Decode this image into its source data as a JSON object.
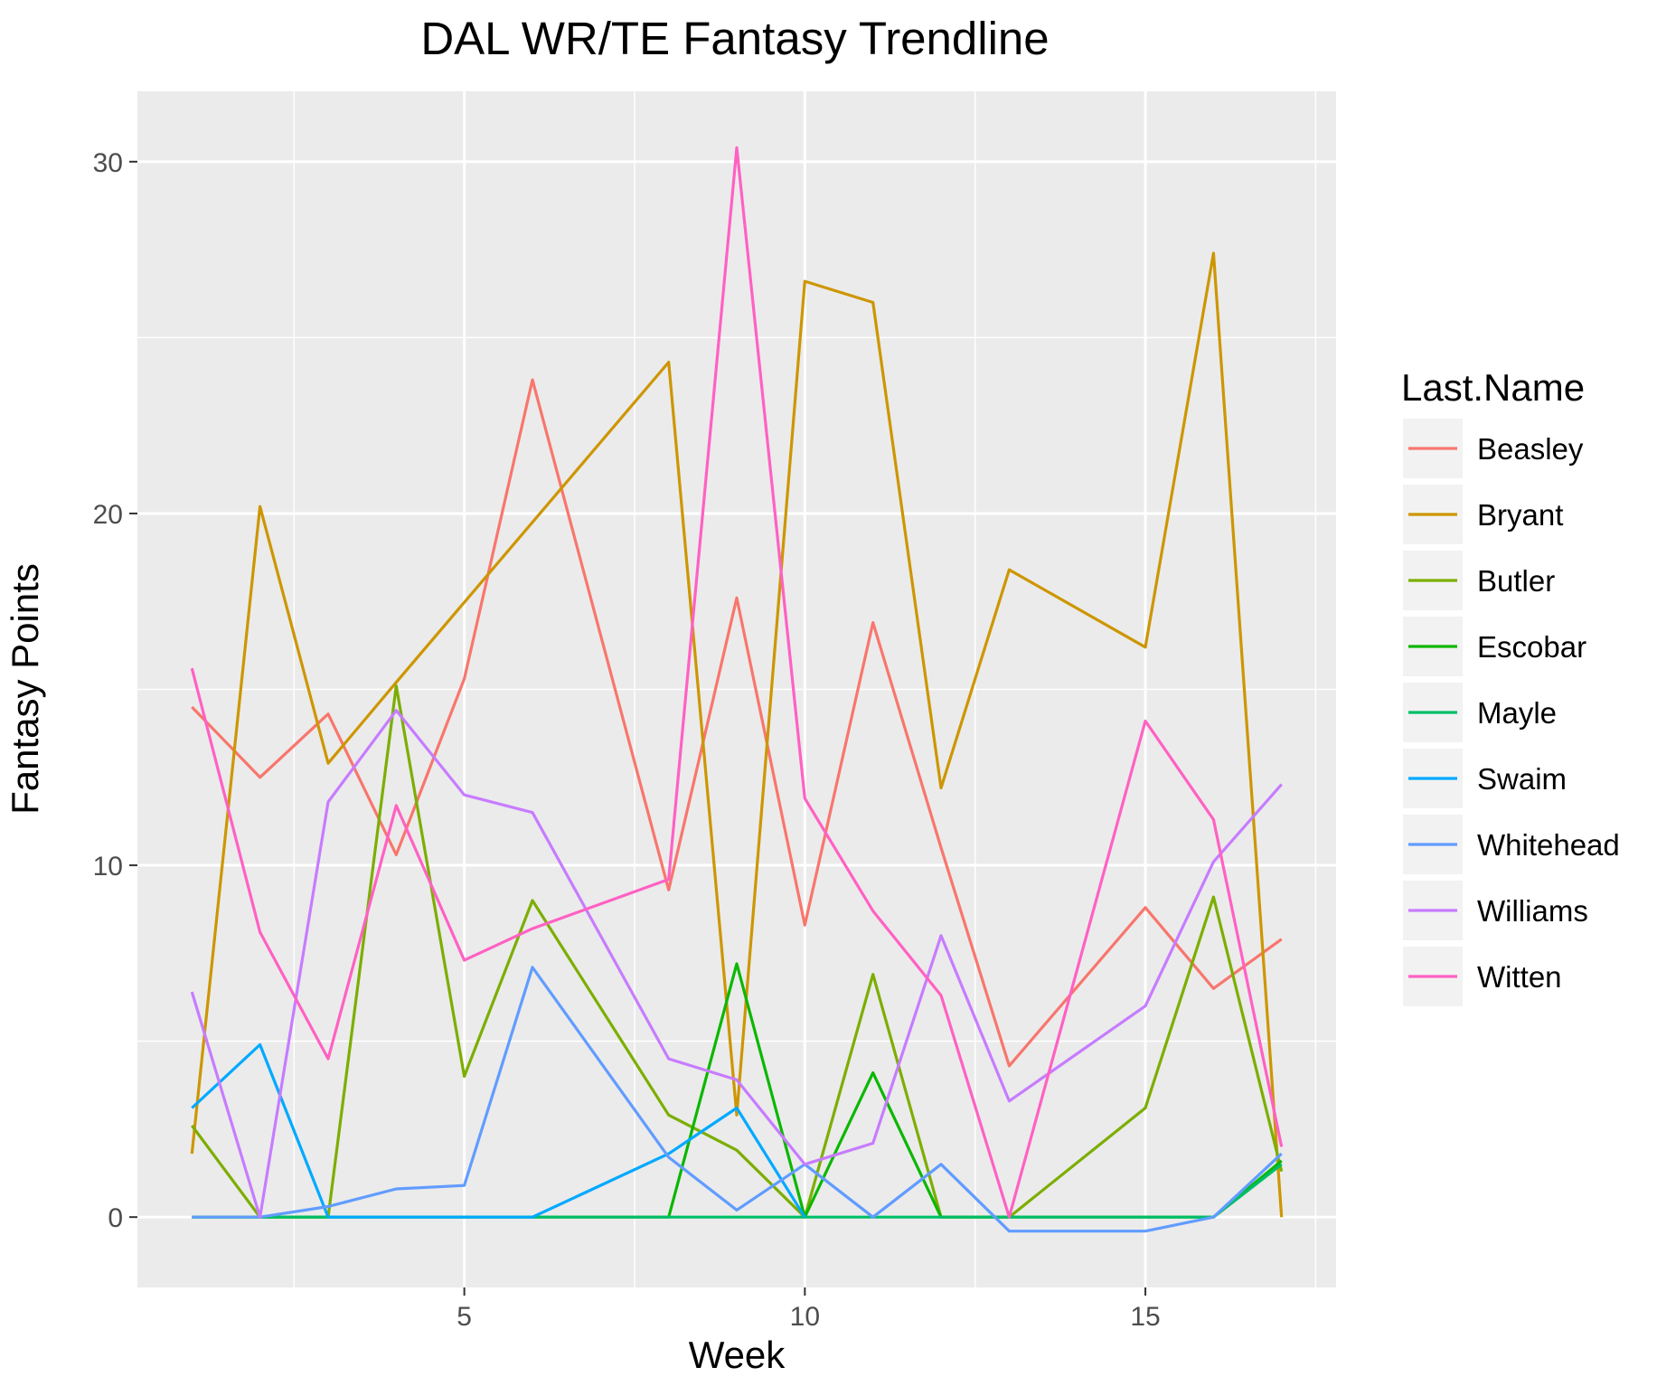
{
  "chart_data": {
    "type": "line",
    "title": "DAL WR/TE Fantasy Trendline",
    "xlabel": "Week",
    "ylabel": "Fantasy Points",
    "xlim": [
      0.2,
      17.8
    ],
    "ylim": [
      -2,
      32
    ],
    "x_ticks": [
      5,
      10,
      15
    ],
    "x_tick_labels": [
      "5",
      "10",
      "15"
    ],
    "y_ticks": [
      0,
      10,
      20,
      30
    ],
    "y_tick_labels": [
      "0",
      "10",
      "20",
      "30"
    ],
    "grid": true,
    "legend": {
      "title": "Last.Name",
      "position": "right"
    },
    "series": [
      {
        "name": "Beasley",
        "color": "#F8766D",
        "points": [
          [
            1,
            14.5
          ],
          [
            2,
            12.5
          ],
          [
            3,
            14.3
          ],
          [
            4,
            10.3
          ],
          [
            5,
            15.3
          ],
          [
            6,
            23.8
          ],
          [
            8,
            9.3
          ],
          [
            9,
            17.6
          ],
          [
            10,
            8.3
          ],
          [
            11,
            16.9
          ],
          [
            12,
            10.5
          ],
          [
            13,
            4.3
          ],
          [
            15,
            8.8
          ],
          [
            16,
            6.5
          ],
          [
            17,
            7.9
          ]
        ]
      },
      {
        "name": "Bryant",
        "color": "#CD9600",
        "points": [
          [
            1,
            1.8
          ],
          [
            2,
            20.2
          ],
          [
            3,
            12.9
          ],
          [
            4,
            15.2
          ],
          [
            8,
            24.3
          ],
          [
            9,
            2.9
          ],
          [
            10,
            26.6
          ],
          [
            11,
            26.0
          ],
          [
            12,
            12.2
          ],
          [
            13,
            18.4
          ],
          [
            15,
            16.2
          ],
          [
            16,
            27.4
          ],
          [
            17,
            0
          ]
        ]
      },
      {
        "name": "Butler",
        "color": "#7CAE00",
        "points": [
          [
            1,
            2.6
          ],
          [
            2,
            0
          ],
          [
            3,
            0
          ],
          [
            4,
            15.1
          ],
          [
            5,
            4.0
          ],
          [
            6,
            9.0
          ],
          [
            8,
            2.9
          ],
          [
            9,
            1.9
          ],
          [
            10,
            0
          ],
          [
            11,
            6.9
          ],
          [
            12,
            0
          ],
          [
            13,
            0
          ],
          [
            15,
            3.1
          ],
          [
            16,
            9.1
          ],
          [
            17,
            1.3
          ]
        ]
      },
      {
        "name": "Escobar",
        "color": "#0CB702",
        "points": [
          [
            1,
            0
          ],
          [
            2,
            0
          ],
          [
            3,
            0
          ],
          [
            4,
            0
          ],
          [
            5,
            0
          ],
          [
            6,
            0
          ],
          [
            8,
            0
          ],
          [
            9,
            7.2
          ],
          [
            10,
            0
          ],
          [
            11,
            4.1
          ],
          [
            12,
            0
          ],
          [
            13,
            0
          ],
          [
            15,
            0
          ],
          [
            16,
            0
          ],
          [
            17,
            1.6
          ]
        ]
      },
      {
        "name": "Mayle",
        "color": "#00BE67",
        "points": [
          [
            1,
            0
          ],
          [
            2,
            0
          ],
          [
            3,
            0
          ],
          [
            4,
            0
          ],
          [
            5,
            0
          ],
          [
            6,
            0
          ],
          [
            8,
            0
          ],
          [
            9,
            0
          ],
          [
            10,
            0
          ],
          [
            11,
            0
          ],
          [
            12,
            0
          ],
          [
            13,
            0
          ],
          [
            15,
            0
          ],
          [
            16,
            0
          ],
          [
            17,
            1.5
          ]
        ]
      },
      {
        "name": "Swaim",
        "color": "#00A9FF",
        "points": [
          [
            1,
            3.1
          ],
          [
            2,
            4.9
          ],
          [
            3,
            0
          ],
          [
            4,
            0
          ],
          [
            5,
            0
          ],
          [
            6,
            0
          ],
          [
            8,
            1.8
          ],
          [
            9,
            3.1
          ],
          [
            10,
            0
          ]
        ]
      },
      {
        "name": "Whitehead",
        "color": "#619CFF",
        "points": [
          [
            1,
            0
          ],
          [
            2,
            0
          ],
          [
            3,
            0.3
          ],
          [
            4,
            0.8
          ],
          [
            5,
            0.9
          ],
          [
            6,
            7.1
          ],
          [
            8,
            1.7
          ],
          [
            9,
            0.2
          ],
          [
            10,
            1.5
          ],
          [
            11,
            0
          ],
          [
            12,
            1.5
          ],
          [
            13,
            -0.4
          ],
          [
            15,
            -0.4
          ],
          [
            16,
            0
          ],
          [
            17,
            1.8
          ]
        ]
      },
      {
        "name": "Williams",
        "color": "#C77CFF",
        "points": [
          [
            1,
            6.4
          ],
          [
            2,
            0
          ],
          [
            3,
            11.8
          ],
          [
            4,
            14.4
          ],
          [
            5,
            12.0
          ],
          [
            6,
            11.5
          ],
          [
            8,
            4.5
          ],
          [
            9,
            3.9
          ],
          [
            10,
            1.5
          ],
          [
            11,
            2.1
          ],
          [
            12,
            8.0
          ],
          [
            13,
            3.3
          ],
          [
            15,
            6.0
          ],
          [
            16,
            10.1
          ],
          [
            17,
            12.3
          ]
        ]
      },
      {
        "name": "Witten",
        "color": "#FF61C3",
        "points": [
          [
            1,
            15.6
          ],
          [
            2,
            8.1
          ],
          [
            3,
            4.5
          ],
          [
            4,
            11.7
          ],
          [
            5,
            7.3
          ],
          [
            6,
            8.2
          ],
          [
            8,
            9.6
          ],
          [
            9,
            30.4
          ],
          [
            10,
            11.9
          ],
          [
            11,
            8.7
          ],
          [
            12,
            6.3
          ],
          [
            13,
            0
          ],
          [
            15,
            14.1
          ],
          [
            16,
            11.3
          ],
          [
            17,
            2.0
          ]
        ]
      }
    ]
  }
}
